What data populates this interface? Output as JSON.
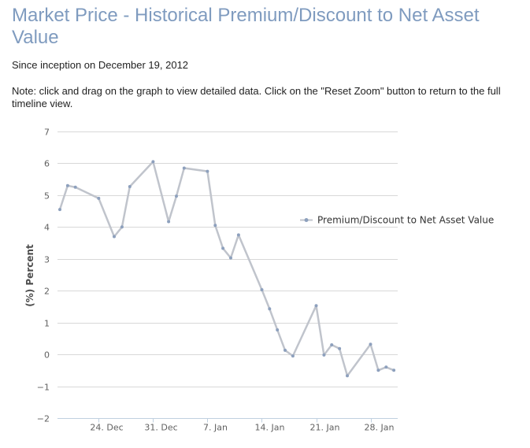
{
  "header": {
    "title": "Market Price - Historical Premium/Discount to Net Asset Value",
    "since": "Since inception on December 19, 2012",
    "note": "Note: click and drag on the graph to view detailed data. Click on the \"Reset Zoom\" button to return to the full timeline view."
  },
  "colors": {
    "line": "#c0c4cc",
    "marker": "#8da0bd",
    "grid": "#d8d8d8",
    "title": "#7f9bbf"
  },
  "chart_data": {
    "type": "line",
    "title": "",
    "xlabel": "",
    "ylabel": "(%) Percent",
    "ylim": [
      -2,
      7
    ],
    "yticks": [
      7,
      6,
      5,
      4,
      3,
      2,
      1,
      0,
      -1,
      -2
    ],
    "xlim": [
      "2012-12-19",
      "2013-02-01"
    ],
    "xticks": [
      {
        "date": "2012-12-24",
        "label": "24. Dec"
      },
      {
        "date": "2012-12-31",
        "label": "31. Dec"
      },
      {
        "date": "2013-01-07",
        "label": "7. Jan"
      },
      {
        "date": "2013-01-14",
        "label": "14. Jan"
      },
      {
        "date": "2013-01-21",
        "label": "21. Jan"
      },
      {
        "date": "2013-01-28",
        "label": "28. Jan"
      }
    ],
    "grid": true,
    "legend_position": "right",
    "series": [
      {
        "name": "Premium/Discount to Net Asset Value",
        "points": [
          [
            "2012-12-19",
            4.55
          ],
          [
            "2012-12-20",
            5.3
          ],
          [
            "2012-12-21",
            5.25
          ],
          [
            "2012-12-24",
            4.9
          ],
          [
            "2012-12-26",
            3.7
          ],
          [
            "2012-12-27",
            4.0
          ],
          [
            "2012-12-28",
            5.27
          ],
          [
            "2012-12-31",
            6.05
          ],
          [
            "2013-01-02",
            4.17
          ],
          [
            "2013-01-03",
            4.97
          ],
          [
            "2013-01-04",
            5.85
          ],
          [
            "2013-01-07",
            5.75
          ],
          [
            "2013-01-08",
            4.05
          ],
          [
            "2013-01-09",
            3.33
          ],
          [
            "2013-01-10",
            3.03
          ],
          [
            "2013-01-11",
            3.75
          ],
          [
            "2013-01-14",
            2.03
          ],
          [
            "2013-01-15",
            1.43
          ],
          [
            "2013-01-16",
            0.77
          ],
          [
            "2013-01-17",
            0.13
          ],
          [
            "2013-01-18",
            -0.05
          ],
          [
            "2013-01-21",
            1.53
          ],
          [
            "2013-01-22",
            -0.02
          ],
          [
            "2013-01-23",
            0.3
          ],
          [
            "2013-01-24",
            0.18
          ],
          [
            "2013-01-25",
            -0.67
          ],
          [
            "2013-01-28",
            0.32
          ],
          [
            "2013-01-29",
            -0.5
          ],
          [
            "2013-01-30",
            -0.4
          ],
          [
            "2013-01-31",
            -0.5
          ]
        ]
      }
    ]
  }
}
